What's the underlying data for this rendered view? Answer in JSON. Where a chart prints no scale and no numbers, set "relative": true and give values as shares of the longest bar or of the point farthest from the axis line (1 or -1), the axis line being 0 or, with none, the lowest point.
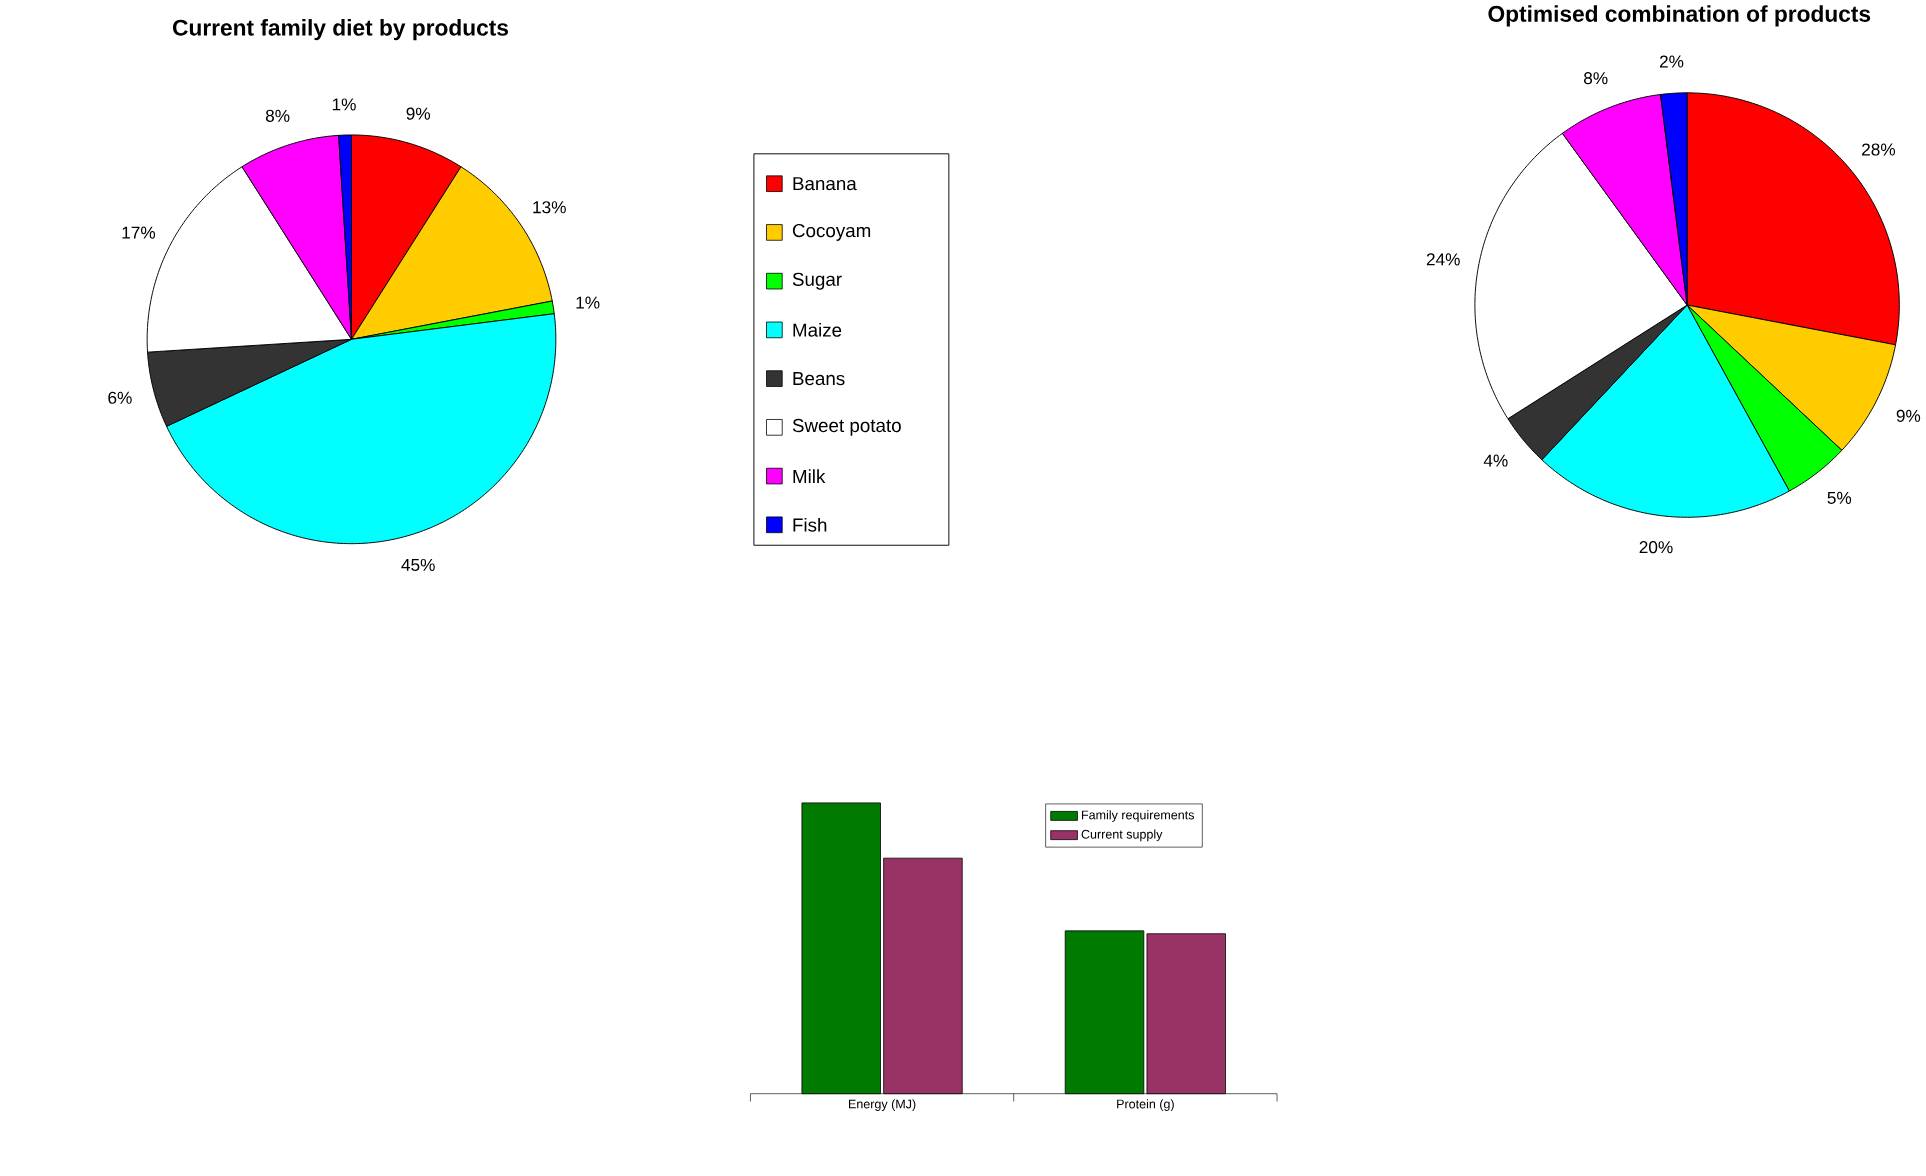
{
  "chart_data": [
    {
      "type": "pie",
      "title": "Current family diet by products",
      "categories": [
        "Banana",
        "Cocoyam",
        "Sugar",
        "Maize",
        "Beans",
        "Sweet potato",
        "Milk",
        "Fish"
      ],
      "values": [
        9,
        13,
        1,
        45,
        6,
        17,
        8,
        1
      ],
      "colors": [
        "#ff0000",
        "#ffcc00",
        "#00ff00",
        "#00ffff",
        "#333333",
        "#ffffff",
        "#ff00ff",
        "#0000ff"
      ],
      "value_labels": [
        "9%",
        "13%",
        "1%",
        "45%",
        "6%",
        "17%",
        "8%",
        "1%"
      ],
      "legend": "right"
    },
    {
      "type": "pie",
      "title": "Optimised combination of products",
      "categories": [
        null,
        null,
        null,
        null,
        null,
        null,
        null,
        null
      ],
      "values": [
        28,
        9,
        5,
        20,
        4,
        24,
        8,
        2
      ],
      "colors": [
        "#ff0000",
        "#ffcc00",
        "#00ff00",
        "#00ffff",
        "#333333",
        "#ffffff",
        "#ff00ff",
        "#0000ff"
      ],
      "value_labels": [
        "28%",
        "9%",
        "5%",
        "20%",
        "4%",
        "24%",
        "8%",
        "2%"
      ]
    },
    {
      "type": "bar",
      "categories": [
        "Energy (MJ)",
        "Protein (g)"
      ],
      "relative": true,
      "legend": "top right",
      "series": [
        {
          "name": "Family requirements",
          "color": "#007a00",
          "values": [
            1,
            0.56
          ]
        },
        {
          "name": "Current supply",
          "color": "#993366",
          "values": [
            0.81,
            0.55
          ]
        }
      ]
    }
  ]
}
